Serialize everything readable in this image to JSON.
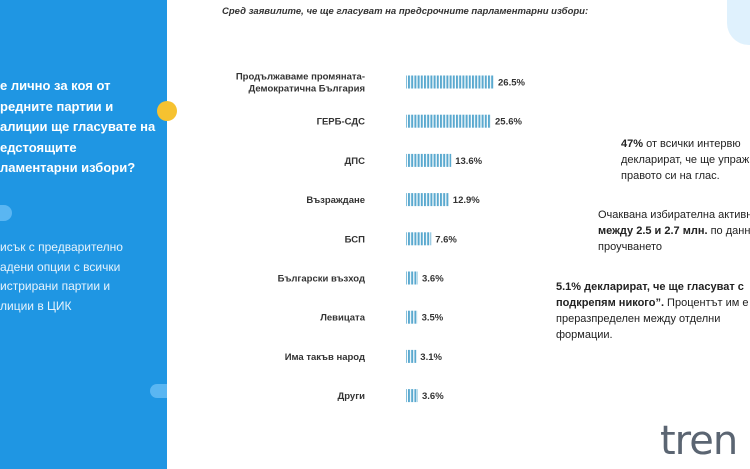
{
  "left_panel": {
    "question_lines": [
      "е лично за коя от",
      "редните партии и",
      "алиции ще гласувате на",
      "едстоящите",
      "ламентарни избори?"
    ],
    "note_lines": [
      "исък с предварително",
      "адени опции с всички",
      "истрирани партии и",
      "лиции в ЦИК"
    ]
  },
  "chart_data": {
    "type": "bar",
    "orientation": "horizontal",
    "subtitle": "Сред заявилите, че ще гласуват на  предсрочните парламентарни избори:",
    "categories": [
      [
        "Продължаваме промяната-",
        "Демократична България"
      ],
      [
        "ГЕРБ-СДС"
      ],
      [
        "ДПС"
      ],
      [
        "Възраждане"
      ],
      [
        "БСП"
      ],
      [
        "Български възход"
      ],
      [
        "Левицата"
      ],
      [
        "Има такъв народ"
      ],
      [
        "Други"
      ]
    ],
    "values": [
      26.5,
      25.6,
      13.6,
      12.9,
      7.6,
      3.6,
      3.5,
      3.1,
      3.6
    ],
    "value_labels": [
      "26.5%",
      "25.6%",
      "13.6%",
      "12.9%",
      "7.6%",
      "3.6%",
      "3.5%",
      "3.1%",
      "3.6%"
    ],
    "bar_color": "#5aa9cf",
    "xlabel": "",
    "ylabel": "",
    "xlim": [
      0,
      26.5
    ],
    "grid": false
  },
  "info": {
    "block1": {
      "bold": "47%",
      "lines": [
        " от всички интервю",
        "декларират, че ще упраж",
        "правото си на глас."
      ]
    },
    "block2": {
      "line1": "Очаквана избирателна активн",
      "bold": "между 2.5 и 2.7 млн.",
      "after_bold": " по данни",
      "line3": "проучването"
    },
    "block3": {
      "bold1": "5.1% декларират, че ще гласуват с",
      "bold2": "подкрепям никого”.",
      "after_bold2": " Процентът им е",
      "line3": "преразпределен между отделни",
      "line4": "формации."
    }
  },
  "logo_text": "tren"
}
